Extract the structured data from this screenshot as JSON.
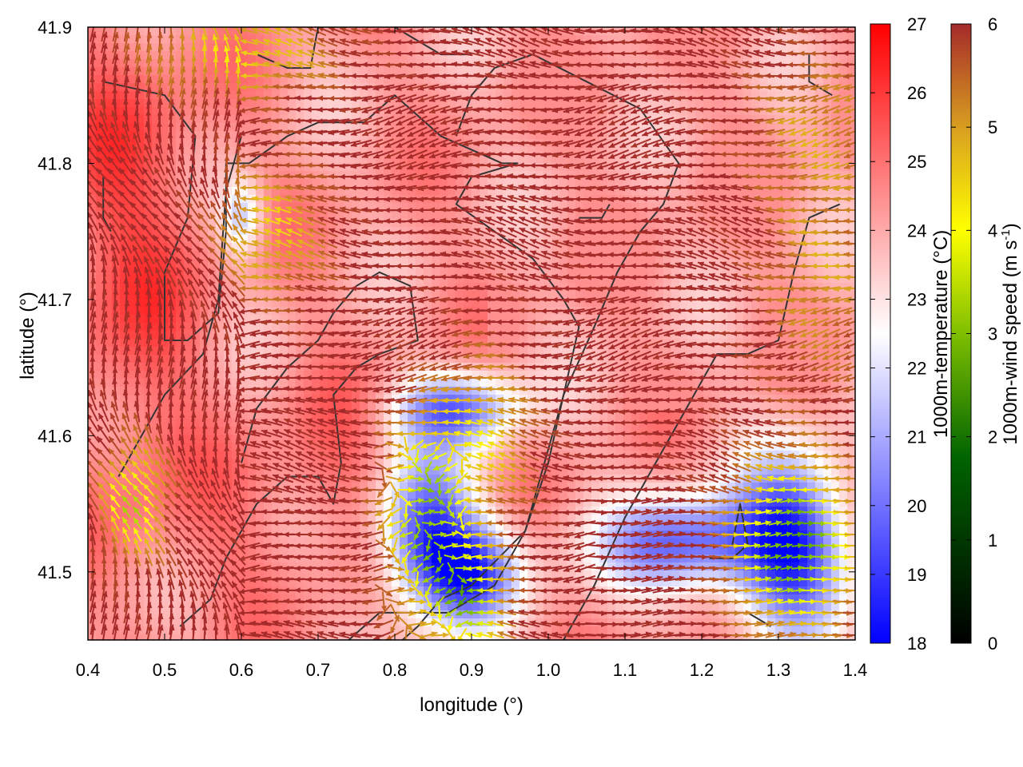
{
  "chart_data": {
    "type": "heatmap",
    "title": "",
    "xlabel": "longitude (°)",
    "ylabel": "latitude (°)",
    "xlim": [
      0.4,
      1.4
    ],
    "ylim": [
      41.45,
      41.9
    ],
    "x_ticks": [
      "0.4",
      "0.5",
      "0.6",
      "0.7",
      "0.8",
      "0.9",
      "1.0",
      "1.1",
      "1.2",
      "1.3",
      "1.4"
    ],
    "y_ticks": [
      "41.5",
      "41.6",
      "41.7",
      "41.8",
      "41.9"
    ],
    "temperature_colorbar": {
      "label": "1000m-temperature (°C)",
      "range": [
        18,
        27
      ],
      "ticks": [
        "18",
        "19",
        "20",
        "21",
        "22",
        "23",
        "24",
        "25",
        "26",
        "27"
      ],
      "colors": [
        "#0000ff",
        "#ffffff",
        "#ff0000"
      ]
    },
    "wind_colorbar": {
      "label_main": "1000m-wind speed (m s",
      "label_sup": "-1",
      "label_end": ")",
      "range": [
        0,
        6
      ],
      "ticks": [
        "0",
        "1",
        "2",
        "3",
        "4",
        "5",
        "6"
      ],
      "colors": [
        "#000000",
        "#006400",
        "#7fbf00",
        "#ffff00",
        "#d9a020",
        "#a52a2a"
      ]
    },
    "cold_regions": [
      {
        "lon": 0.84,
        "lat": 41.53,
        "rlon": 0.07,
        "rlat": 0.06,
        "temp": 19.3
      },
      {
        "lon": 0.88,
        "lat": 41.62,
        "rlon": 0.09,
        "rlat": 0.03,
        "temp": 20.2
      },
      {
        "lon": 0.9,
        "lat": 41.5,
        "rlon": 0.07,
        "rlat": 0.04,
        "temp": 19.8
      },
      {
        "lon": 1.18,
        "lat": 41.52,
        "rlon": 0.12,
        "rlat": 0.04,
        "temp": 19.8
      },
      {
        "lon": 1.32,
        "lat": 41.52,
        "rlon": 0.08,
        "rlat": 0.07,
        "temp": 18.8
      },
      {
        "lon": 0.6,
        "lat": 41.76,
        "rlon": 0.03,
        "rlat": 0.03,
        "temp": 21.5
      }
    ],
    "warm_regions": [
      {
        "lon": 0.45,
        "lat": 41.78,
        "rlon": 0.1,
        "rlat": 0.13,
        "temp": 25.6
      },
      {
        "lon": 0.47,
        "lat": 41.6,
        "rlon": 0.08,
        "rlat": 0.12,
        "temp": 25.0
      },
      {
        "lon": 0.72,
        "lat": 41.57,
        "rlon": 0.08,
        "rlat": 0.07,
        "temp": 25.2
      },
      {
        "lon": 0.75,
        "lat": 41.72,
        "rlon": 0.12,
        "rlat": 0.05,
        "temp": 24.3
      },
      {
        "lon": 0.58,
        "lat": 41.52,
        "rlon": 0.06,
        "rlat": 0.06,
        "temp": 24.8
      }
    ],
    "calm_regions": [
      {
        "lon": 0.84,
        "lat": 41.54,
        "rlon": 0.05,
        "rlat": 0.07,
        "speed": 2.5
      },
      {
        "lon": 0.9,
        "lat": 41.48,
        "rlon": 0.05,
        "rlat": 0.04,
        "speed": 2.8
      },
      {
        "lon": 1.32,
        "lat": 41.52,
        "rlon": 0.08,
        "rlat": 0.06,
        "speed": 1.9
      },
      {
        "lon": 0.46,
        "lat": 41.55,
        "rlon": 0.04,
        "rlat": 0.04,
        "speed": 2.8
      },
      {
        "lon": 0.64,
        "lat": 41.75,
        "rlon": 0.07,
        "rlat": 0.05,
        "speed": 4.2
      },
      {
        "lon": 0.6,
        "lat": 41.88,
        "rlon": 0.12,
        "rlat": 0.03,
        "speed": 4.0
      },
      {
        "lon": 0.92,
        "lat": 41.6,
        "rlon": 0.06,
        "rlat": 0.06,
        "speed": 4.2
      },
      {
        "lon": 1.36,
        "lat": 41.72,
        "rlon": 0.08,
        "rlat": 0.08,
        "speed": 4.8
      },
      {
        "lon": 1.35,
        "lat": 41.83,
        "rlon": 0.09,
        "rlat": 0.05,
        "speed": 5.0
      }
    ],
    "contours": [
      [
        [
          0.42,
          41.86
        ],
        [
          0.5,
          41.85
        ],
        [
          0.54,
          41.82
        ],
        [
          0.53,
          41.76
        ],
        [
          0.5,
          41.72
        ],
        [
          0.5,
          41.67
        ],
        [
          0.53,
          41.67
        ],
        [
          0.57,
          41.69
        ],
        [
          0.58,
          41.75
        ],
        [
          0.58,
          41.8
        ],
        [
          0.61,
          41.8
        ],
        [
          0.66,
          41.82
        ],
        [
          0.7,
          41.83
        ],
        [
          0.76,
          41.83
        ],
        [
          0.8,
          41.85
        ],
        [
          0.86,
          41.82
        ],
        [
          0.9,
          41.81
        ],
        [
          0.94,
          41.8
        ],
        [
          0.96,
          41.8
        ],
        [
          0.9,
          41.79
        ],
        [
          0.88,
          41.77
        ],
        [
          0.93,
          41.75
        ],
        [
          0.98,
          41.73
        ],
        [
          1.02,
          41.7
        ],
        [
          1.04,
          41.68
        ],
        [
          1.02,
          41.63
        ],
        [
          0.99,
          41.57
        ],
        [
          0.97,
          41.53
        ],
        [
          0.9,
          41.49
        ],
        [
          0.86,
          41.48
        ],
        [
          0.83,
          41.46
        ],
        [
          0.81,
          41.45
        ]
      ],
      [
        [
          0.52,
          41.46
        ],
        [
          0.56,
          41.48
        ],
        [
          0.58,
          41.51
        ],
        [
          0.6,
          41.53
        ],
        [
          0.62,
          41.55
        ],
        [
          0.66,
          41.57
        ],
        [
          0.7,
          41.57
        ],
        [
          0.72,
          41.55
        ],
        [
          0.73,
          41.58
        ],
        [
          0.72,
          41.63
        ],
        [
          0.75,
          41.65
        ],
        [
          0.78,
          41.66
        ],
        [
          0.83,
          41.67
        ],
        [
          0.82,
          41.71
        ],
        [
          0.78,
          41.72
        ],
        [
          0.75,
          41.71
        ],
        [
          0.72,
          41.69
        ],
        [
          0.7,
          41.67
        ],
        [
          0.66,
          41.65
        ],
        [
          0.62,
          41.62
        ],
        [
          0.6,
          41.58
        ]
      ],
      [
        [
          0.44,
          41.57
        ],
        [
          0.47,
          41.6
        ],
        [
          0.5,
          41.63
        ],
        [
          0.55,
          41.66
        ],
        [
          0.57,
          41.7
        ],
        [
          0.58,
          41.78
        ],
        [
          0.6,
          41.82
        ]
      ],
      [
        [
          0.74,
          41.45
        ],
        [
          0.78,
          41.47
        ],
        [
          0.82,
          41.47
        ],
        [
          0.87,
          41.47
        ],
        [
          0.93,
          41.49
        ],
        [
          0.97,
          41.53
        ],
        [
          1.0,
          41.58
        ],
        [
          1.02,
          41.63
        ],
        [
          1.06,
          41.68
        ],
        [
          1.09,
          41.72
        ],
        [
          1.12,
          41.75
        ],
        [
          1.15,
          41.77
        ],
        [
          1.17,
          41.8
        ],
        [
          1.12,
          41.84
        ],
        [
          1.05,
          41.86
        ],
        [
          0.98,
          41.88
        ],
        [
          0.93,
          41.87
        ],
        [
          0.9,
          41.85
        ],
        [
          0.88,
          41.82
        ]
      ],
      [
        [
          1.02,
          41.45
        ],
        [
          1.06,
          41.49
        ],
        [
          1.1,
          41.54
        ],
        [
          1.14,
          41.58
        ],
        [
          1.18,
          41.62
        ],
        [
          1.22,
          41.66
        ],
        [
          1.26,
          41.66
        ],
        [
          1.3,
          41.67
        ],
        [
          1.32,
          41.72
        ],
        [
          1.34,
          41.76
        ],
        [
          1.38,
          41.77
        ]
      ],
      [
        [
          1.18,
          41.47
        ],
        [
          1.22,
          41.47
        ],
        [
          1.26,
          41.47
        ],
        [
          1.29,
          41.46
        ]
      ],
      [
        [
          1.21,
          41.51
        ],
        [
          1.24,
          41.51
        ],
        [
          1.26,
          41.52
        ],
        [
          1.25,
          41.55
        ],
        [
          1.24,
          41.52
        ]
      ],
      [
        [
          0.62,
          41.88
        ],
        [
          0.66,
          41.87
        ],
        [
          0.69,
          41.87
        ],
        [
          0.7,
          41.9
        ]
      ],
      [
        [
          0.8,
          41.9
        ],
        [
          0.86,
          41.88
        ],
        [
          0.9,
          41.88
        ]
      ],
      [
        [
          1.34,
          41.88
        ],
        [
          1.34,
          41.86
        ],
        [
          1.37,
          41.85
        ]
      ],
      [
        [
          1.04,
          41.76
        ],
        [
          1.07,
          41.76
        ],
        [
          1.08,
          41.77
        ]
      ],
      [
        [
          0.42,
          41.79
        ],
        [
          0.42,
          41.76
        ],
        [
          0.43,
          41.75
        ]
      ]
    ]
  }
}
